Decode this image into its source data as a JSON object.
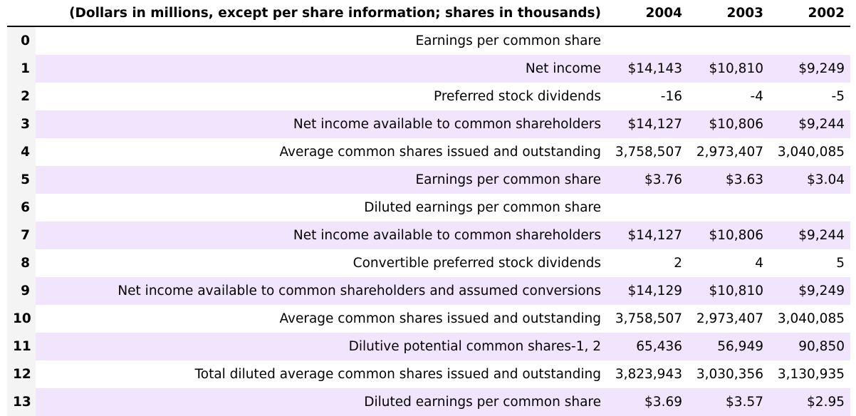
{
  "table": {
    "header": {
      "index_label": "",
      "description": "(Dollars in millions, except per share information; shares in thousands)",
      "years": [
        "2004",
        "2003",
        "2002"
      ]
    },
    "rows": [
      {
        "index": "0",
        "label": "Earnings per common share",
        "values": [
          "",
          "",
          ""
        ]
      },
      {
        "index": "1",
        "label": "Net income",
        "values": [
          "$14,143",
          "$10,810",
          "$9,249"
        ]
      },
      {
        "index": "2",
        "label": "Preferred stock dividends",
        "values": [
          "-16",
          "-4",
          "-5"
        ]
      },
      {
        "index": "3",
        "label": "Net income available to common shareholders",
        "values": [
          "$14,127",
          "$10,806",
          "$9,244"
        ]
      },
      {
        "index": "4",
        "label": "Average common shares issued and outstanding",
        "values": [
          "3,758,507",
          "2,973,407",
          "3,040,085"
        ]
      },
      {
        "index": "5",
        "label": "Earnings per common share",
        "values": [
          "$3.76",
          "$3.63",
          "$3.04"
        ]
      },
      {
        "index": "6",
        "label": "Diluted earnings per common share",
        "values": [
          "",
          "",
          ""
        ]
      },
      {
        "index": "7",
        "label": "Net income available to common shareholders",
        "values": [
          "$14,127",
          "$10,806",
          "$9,244"
        ]
      },
      {
        "index": "8",
        "label": "Convertible preferred stock dividends",
        "values": [
          "2",
          "4",
          "5"
        ]
      },
      {
        "index": "9",
        "label": "Net income available to common shareholders and assumed conversions",
        "values": [
          "$14,129",
          "$10,810",
          "$9,249"
        ]
      },
      {
        "index": "10",
        "label": "Average common shares issued and outstanding",
        "values": [
          "3,758,507",
          "2,973,407",
          "3,040,085"
        ]
      },
      {
        "index": "11",
        "label": "Dilutive potential common shares-1, 2",
        "values": [
          "65,436",
          "56,949",
          "90,850"
        ]
      },
      {
        "index": "12",
        "label": "Total diluted average common shares issued and outstanding",
        "values": [
          "3,823,943",
          "3,030,356",
          "3,130,935"
        ]
      },
      {
        "index": "13",
        "label": "Diluted earnings per common share",
        "values": [
          "$3.69",
          "$3.57",
          "$2.95"
        ]
      }
    ]
  },
  "colors": {
    "stripe": "#f1e5fd",
    "index_background": "#f4f4f4",
    "header_rule": "#000000"
  }
}
